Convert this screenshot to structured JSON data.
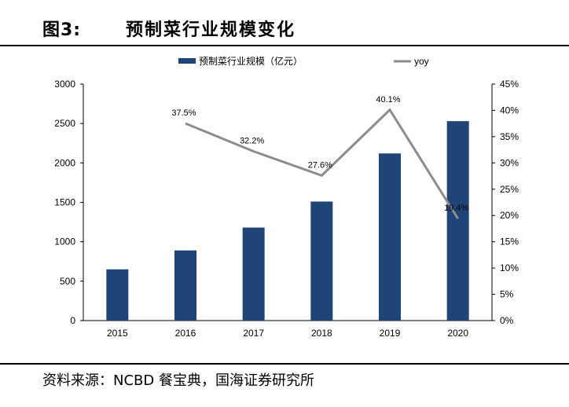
{
  "figure": {
    "label": "图3:",
    "title": "预制菜行业规模变化",
    "source": "资料来源：NCBD 餐宝典，国海证券研究所"
  },
  "colors": {
    "bar": "#1f4478",
    "line": "#8c8c8c",
    "axis": "#000000"
  },
  "chart_data": {
    "type": "bar",
    "categories": [
      "2015",
      "2016",
      "2017",
      "2018",
      "2019",
      "2020"
    ],
    "series": [
      {
        "name": "预制菜行业规模（亿元）",
        "type": "bar",
        "axis": "left",
        "values": [
          650,
          890,
          1180,
          1510,
          2120,
          2530
        ]
      },
      {
        "name": "yoy",
        "type": "line",
        "axis": "right",
        "values": [
          null,
          37.5,
          32.2,
          27.6,
          40.1,
          19.4
        ],
        "labels": [
          "",
          "37.5%",
          "32.2%",
          "27.6%",
          "40.1%",
          "19.4%"
        ]
      }
    ],
    "ylim": [
      0,
      3000
    ],
    "yticks": [
      "0",
      "500",
      "1000",
      "1500",
      "2000",
      "2500",
      "3000"
    ],
    "y2lim": [
      0,
      45
    ],
    "y2ticks": [
      "0%",
      "5%",
      "10%",
      "15%",
      "20%",
      "25%",
      "30%",
      "35%",
      "40%",
      "45%"
    ],
    "legend_position": "top",
    "grid": false
  }
}
